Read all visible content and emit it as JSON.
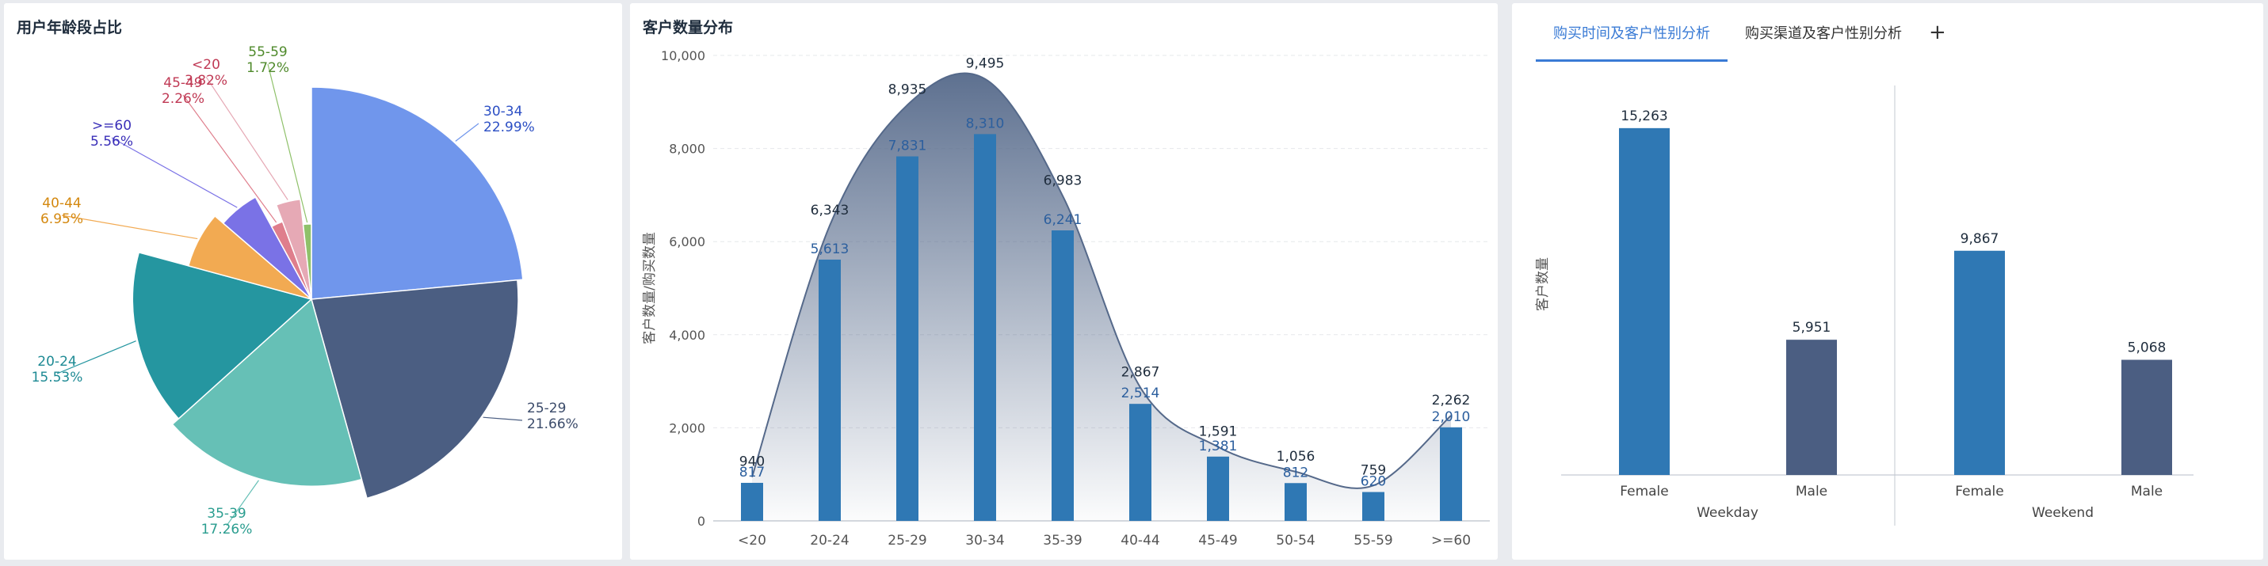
{
  "panel1": {
    "title": "用户年龄段占比",
    "chart_data": {
      "type": "pie",
      "variant": "rose",
      "slices": [
        {
          "label": "30-34",
          "percent": "22.99%",
          "value": 22.99,
          "color": "#7096ec"
        },
        {
          "label": "25-29",
          "percent": "21.66%",
          "value": 21.66,
          "color": "#4b5e82"
        },
        {
          "label": "35-39",
          "percent": "17.26%",
          "value": 17.26,
          "color": "#66c0b6"
        },
        {
          "label": "20-24",
          "percent": "15.53%",
          "value": 15.53,
          "color": "#2596a0"
        },
        {
          "label": "40-44",
          "percent": "6.95%",
          "value": 6.95,
          "color": "#f2aa52"
        },
        {
          "label": ">=60",
          "percent": "5.56%",
          "value": 5.56,
          "color": "#7a72e6"
        },
        {
          "label": "45-49",
          "percent": "2.26%",
          "value": 2.26,
          "color": "#df7e8c"
        },
        {
          "label": "<20",
          "percent": "3.82%",
          "value": 3.82,
          "color": "#e6a9b5"
        },
        {
          "label": "55-59",
          "percent": "1.72%",
          "value": 1.72,
          "color": "#8fc16a"
        }
      ]
    }
  },
  "panel2": {
    "title": "客户数量分布",
    "chart_data": {
      "type": "bar",
      "categories": [
        "<20",
        "20-24",
        "25-29",
        "30-34",
        "35-39",
        "40-44",
        "45-49",
        "50-54",
        "55-59",
        ">=60"
      ],
      "ylabel": "客户数量/购买数量",
      "ylim": [
        0,
        10000
      ],
      "yticks": [
        "0",
        "2,000",
        "4,000",
        "6,000",
        "8,000",
        "10,000"
      ],
      "grid": true,
      "series": [
        {
          "type": "bar",
          "color": "#2f78b4",
          "values": [
            817,
            5613,
            7831,
            8310,
            6241,
            2514,
            1381,
            812,
            620,
            2010
          ],
          "labels": [
            "817",
            "5,613",
            "7,831",
            "8,310",
            "6,241",
            "2,514",
            "1,381",
            "812",
            "620",
            "2,010"
          ]
        },
        {
          "type": "area",
          "color": "#55698a",
          "values": [
            940,
            6343,
            8935,
            9495,
            6983,
            2867,
            1591,
            1056,
            759,
            2262
          ],
          "labels": [
            "940",
            "6,343",
            "8,935",
            "9,495",
            "6,983",
            "2,867",
            "1,591",
            "1,056",
            "759",
            "2,262"
          ]
        }
      ]
    }
  },
  "panel3": {
    "tabs": [
      "购买时间及客户性别分析",
      "购买渠道及客户性别分析"
    ],
    "add_tab": "+",
    "chart_data": {
      "type": "bar",
      "ylabel": "客户数量",
      "groups": [
        "Weekday",
        "Weekend"
      ],
      "categories": [
        "Female",
        "Male",
        "Female",
        "Male"
      ],
      "values": [
        15263,
        5951,
        9867,
        5068
      ],
      "labels": [
        "15,263",
        "5,951",
        "9,867",
        "5,068"
      ],
      "colors": [
        "#2f78b4",
        "#4b5e82",
        "#2f78b4",
        "#4b5e82"
      ],
      "ylim": [
        0,
        17000
      ]
    }
  }
}
